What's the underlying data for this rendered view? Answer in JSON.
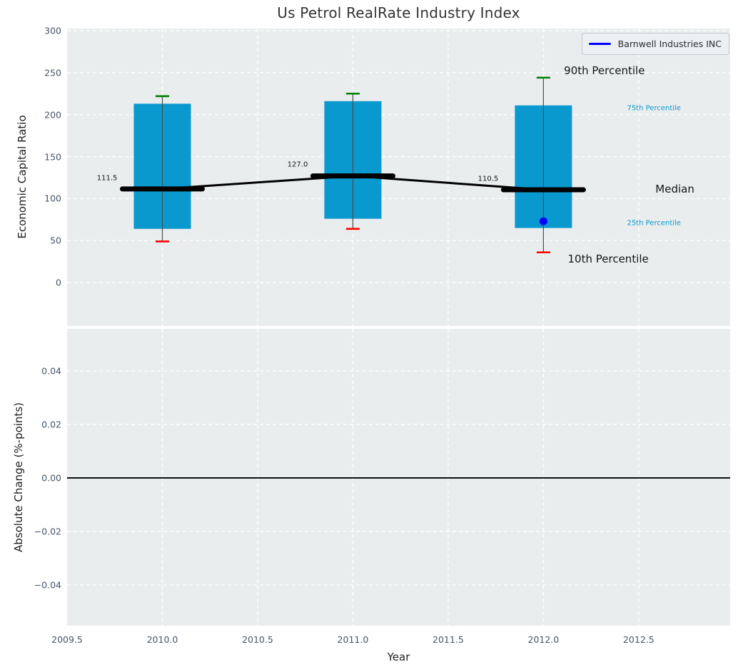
{
  "figure": {
    "title": "Us Petrol RealRate Industry Index"
  },
  "legend": {
    "label": "Barnwell Industries INC"
  },
  "colors": {
    "figure_bg": "#FFFFFF",
    "plot_bg": "#EAEDEE",
    "grid": "#FFFFFF",
    "box_fill": "#0999CE",
    "p90_cap": "#008000",
    "p10_cap": "#FF0000",
    "median": "#000000",
    "company": "#0000FF",
    "whisker": "#4D4D4D",
    "tick_label": "#465569",
    "text_dark": "#151515",
    "accent_text": "#0999CE",
    "zero_line": "#000000"
  },
  "chart_data": [
    {
      "type": "bar",
      "subtype": "percentile-box",
      "title": "Us Petrol RealRate Industry Index",
      "ylabel": "Economic Capital Ratio",
      "categories": [
        2010,
        2011,
        2012
      ],
      "series": [
        {
          "name": "90th Percentile",
          "values": [
            222,
            225,
            244
          ]
        },
        {
          "name": "75th Percentile",
          "values": [
            213,
            216,
            211
          ]
        },
        {
          "name": "Median",
          "values": [
            111.5,
            127.0,
            110.5
          ]
        },
        {
          "name": "25th Percentile",
          "values": [
            64,
            76,
            65
          ]
        },
        {
          "name": "10th Percentile",
          "values": [
            49,
            64,
            36
          ]
        }
      ],
      "median_labels": [
        "111.5",
        "127.0",
        "110.5"
      ],
      "company_series": {
        "name": "Barnwell Industries INC",
        "points": [
          {
            "x": 2012,
            "y": 73
          }
        ]
      },
      "legend_position": "upper right",
      "grid": true,
      "xlim": [
        2009.5,
        2012.98
      ],
      "ylim": [
        -51.7,
        302.5
      ],
      "yticks": [
        {
          "v": 0,
          "label": "0"
        },
        {
          "v": 50,
          "label": "50"
        },
        {
          "v": 100,
          "label": "100"
        },
        {
          "v": 150,
          "label": "150"
        },
        {
          "v": 200,
          "label": "200"
        },
        {
          "v": 250,
          "label": "250"
        },
        {
          "v": 300,
          "label": "300"
        }
      ],
      "annotations": [
        {
          "name": "90th-percentile-label",
          "text": "90th Percentile",
          "x": 2012.32,
          "y": 252,
          "size": 15,
          "color": "dark"
        },
        {
          "name": "75th-percentile-label",
          "text": "75th Percentile",
          "x": 2012.58,
          "y": 207,
          "size": 10,
          "color": "accent"
        },
        {
          "name": "median-label",
          "text": "Median",
          "x": 2012.69,
          "y": 111,
          "size": 15,
          "color": "dark"
        },
        {
          "name": "25th-percentile-label",
          "text": "25th Percentile",
          "x": 2012.58,
          "y": 71,
          "size": 10,
          "color": "accent"
        },
        {
          "name": "10th-percentile-label",
          "text": "10th Percentile",
          "x": 2012.34,
          "y": 28,
          "size": 15,
          "color": "dark"
        }
      ]
    },
    {
      "type": "line",
      "subtype": "zero-change-panel",
      "ylabel": "Absolute Change (%-points)",
      "xlabel": "Year",
      "grid": true,
      "xlim": [
        2009.5,
        2012.98
      ],
      "ylim": [
        -0.0552,
        0.0557
      ],
      "zero_line_y": 0.0,
      "series": [],
      "yticks": [
        {
          "v": 0.04,
          "label": "0.04"
        },
        {
          "v": 0.02,
          "label": "0.02"
        },
        {
          "v": 0.0,
          "label": "0.00"
        },
        {
          "v": -0.02,
          "label": "−0.02"
        },
        {
          "v": -0.04,
          "label": "−0.04"
        }
      ],
      "xticks": [
        {
          "v": 2009.5,
          "label": "2009.5"
        },
        {
          "v": 2010.0,
          "label": "2010.0"
        },
        {
          "v": 2010.5,
          "label": "2010.5"
        },
        {
          "v": 2011.0,
          "label": "2011.0"
        },
        {
          "v": 2011.5,
          "label": "2011.5"
        },
        {
          "v": 2012.0,
          "label": "2012.0"
        },
        {
          "v": 2012.5,
          "label": "2012.5"
        }
      ]
    }
  ]
}
